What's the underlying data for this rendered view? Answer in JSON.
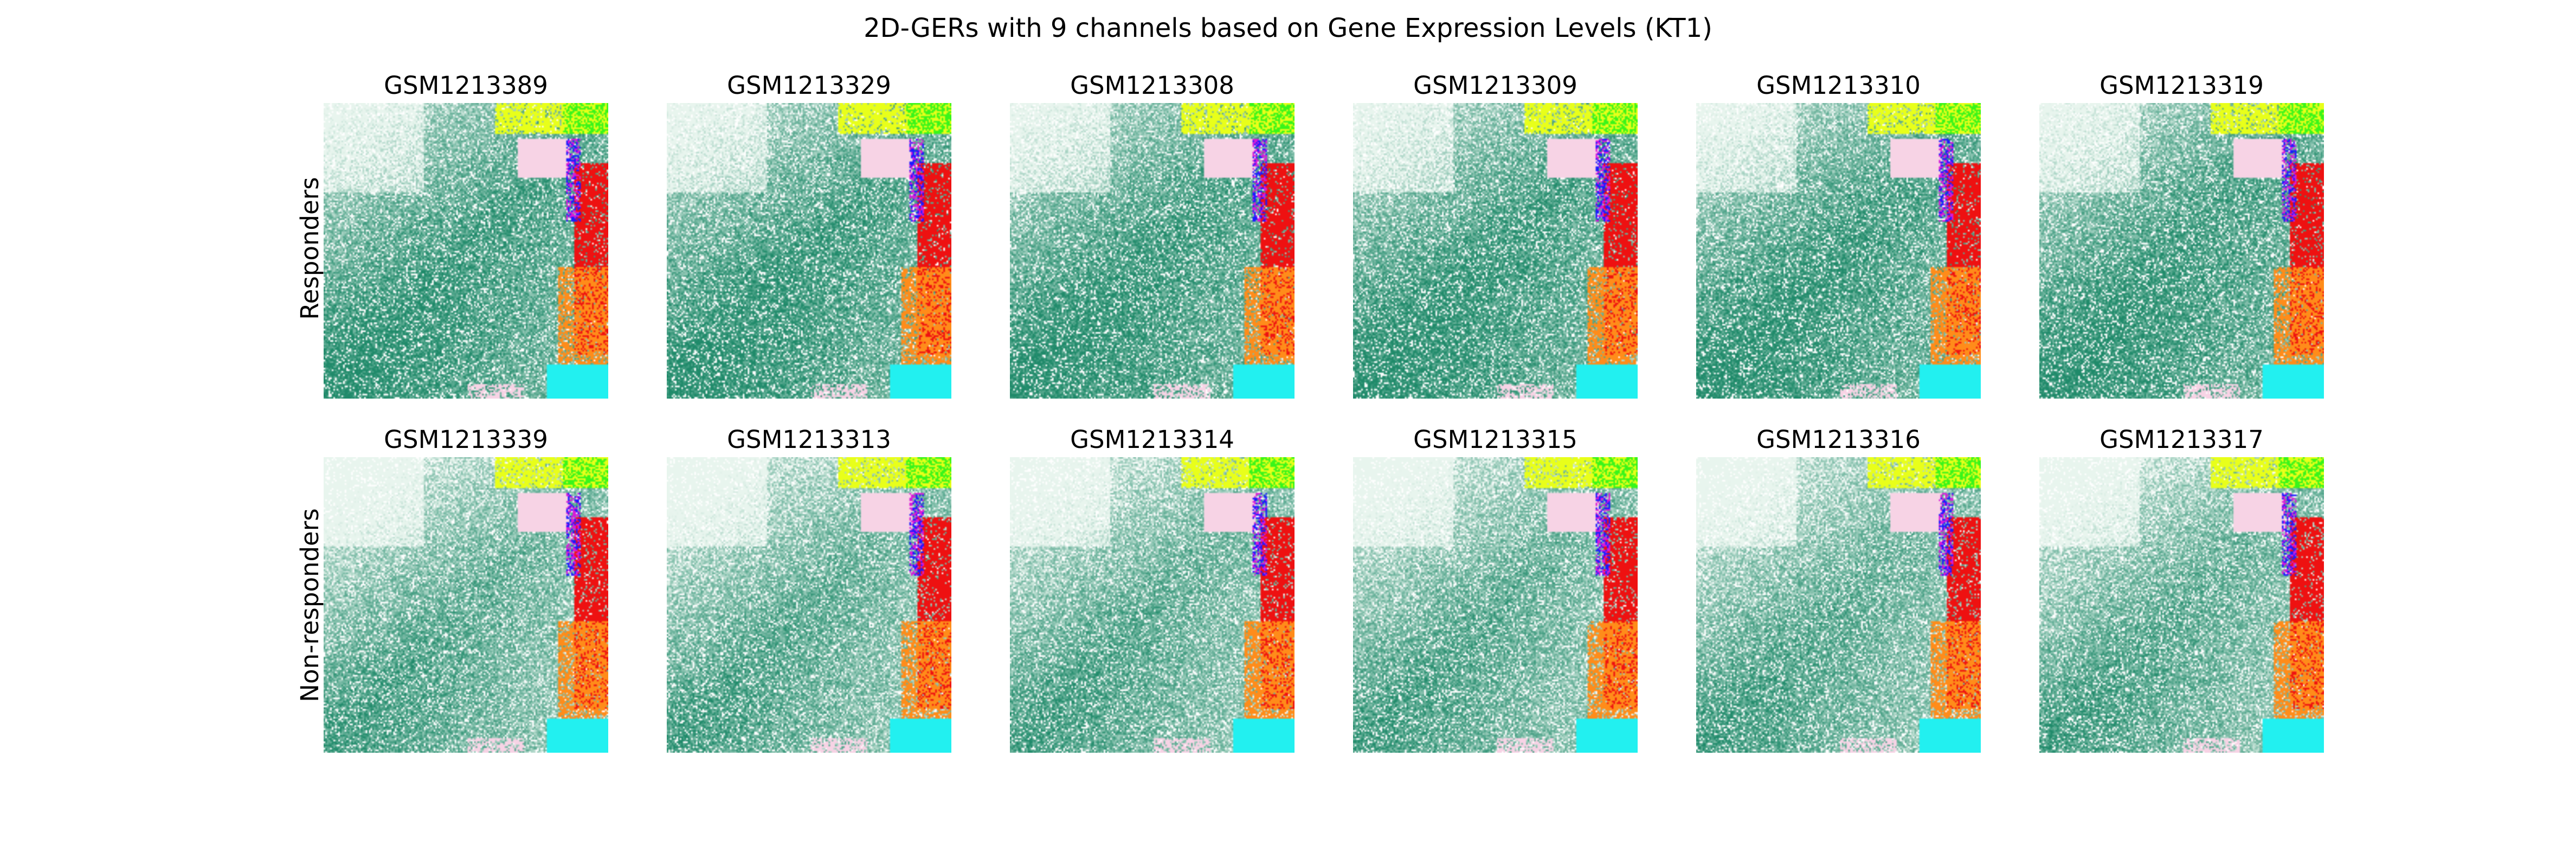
{
  "figure": {
    "title": "2D-GERs with 9 channels based on Gene Expression Levels (KT1)"
  },
  "chart_data": {
    "type": "heatmap",
    "title": "2D-GERs with 9 channels based on Gene Expression Levels (KT1)",
    "rows": [
      "Responders",
      "Non-responders"
    ],
    "samples": [
      [
        "GSM1213389",
        "GSM1213329",
        "GSM1213308",
        "GSM1213309",
        "GSM1213310",
        "GSM1213319"
      ],
      [
        "GSM1213339",
        "GSM1213313",
        "GSM1213314",
        "GSM1213315",
        "GSM1213316",
        "GSM1213317"
      ]
    ],
    "axes_visible": false,
    "channel_colors": {
      "green_gradient_light": "#e8f5ee",
      "green_gradient_dark": "#1f8a6a",
      "yellow": "#e8ff1a",
      "lime": "#39f51a",
      "pink": "#f7d3e5",
      "magenta": "#d81bd8",
      "blue": "#1a1aff",
      "red": "#ee1111",
      "orange": "#ff8c1a",
      "cyan": "#22f0f0"
    }
  }
}
